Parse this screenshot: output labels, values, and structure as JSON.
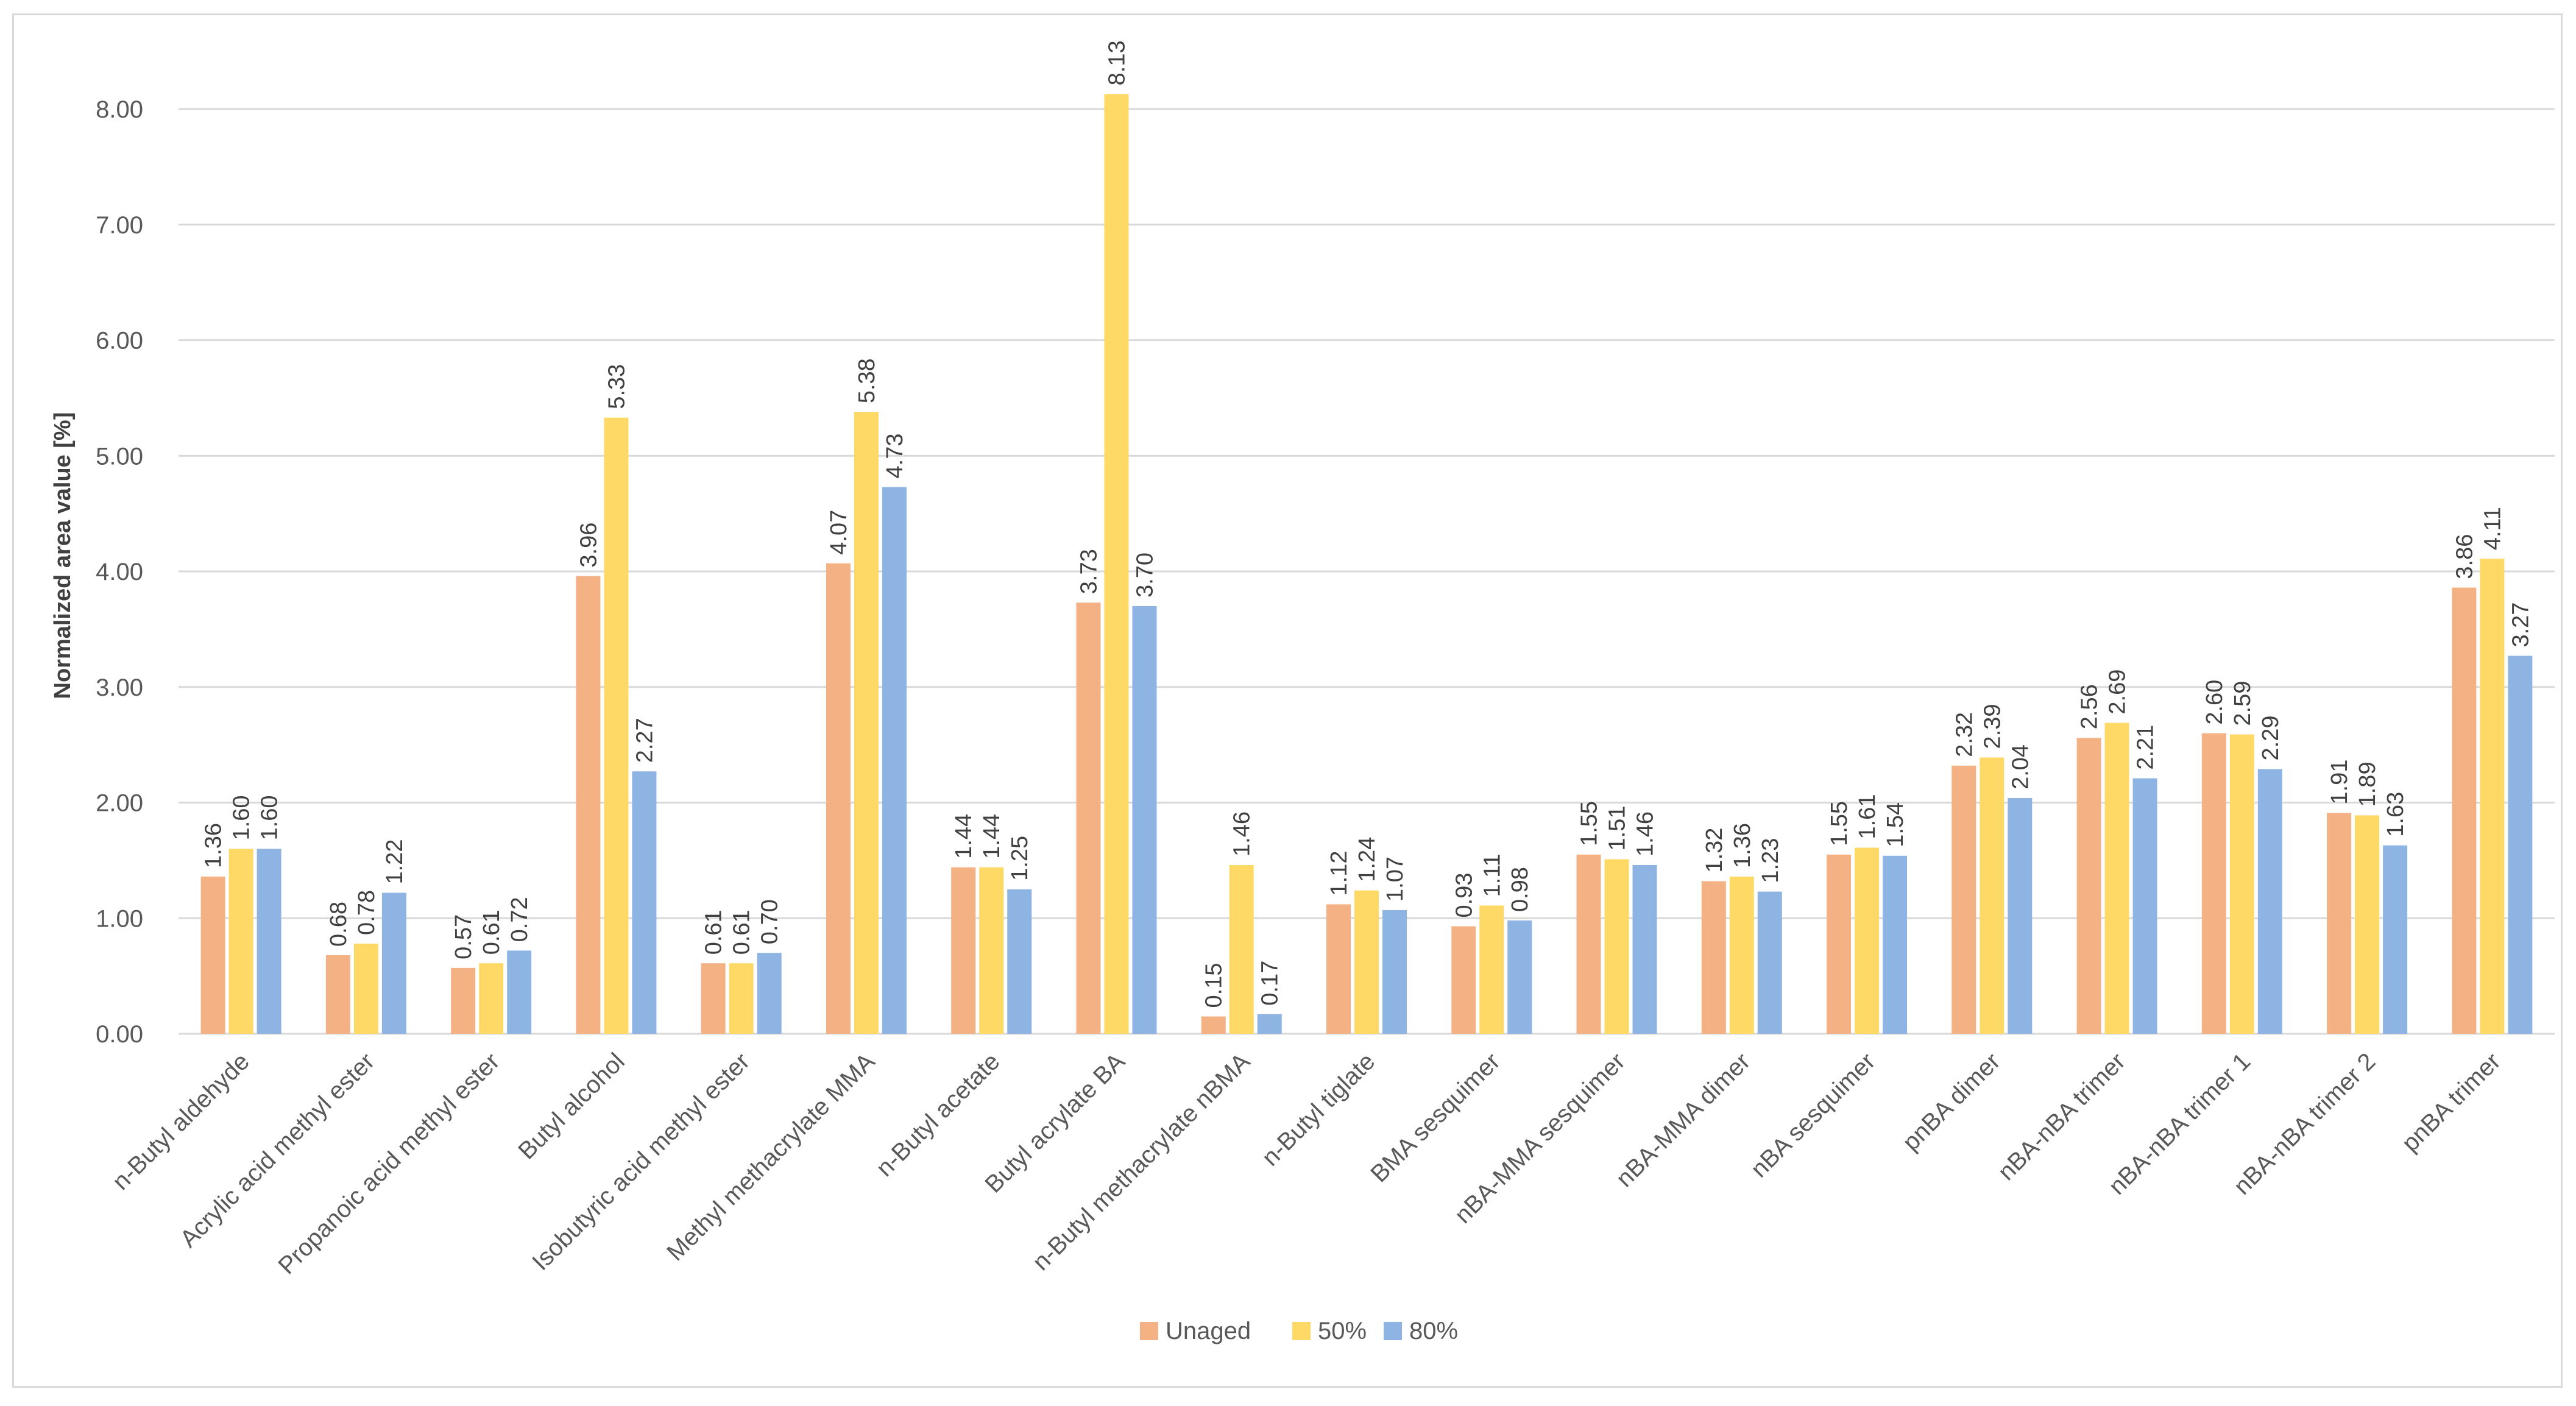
{
  "chart_data": {
    "type": "bar",
    "title": "",
    "xlabel": "",
    "ylabel": "Normalized area value [%]",
    "ylim": [
      0,
      8.5
    ],
    "yticks": [
      "0.00",
      "1.00",
      "2.00",
      "3.00",
      "4.00",
      "5.00",
      "6.00",
      "7.00",
      "8.00"
    ],
    "grid": true,
    "legend_position": "bottom",
    "categories": [
      "n-Butyl aldehyde",
      "Acrylic acid methyl ester",
      "Propanoic acid methyl ester",
      "Butyl alcohol",
      "Isobutyric acid methyl ester",
      "Methyl methacrylate MMA",
      "n-Butyl acetate",
      "Butyl acrylate BA",
      "n-Butyl methacrylate nBMA",
      "n-Butyl tiglate",
      "BMA sesquimer",
      "nBA-MMA sesquimer",
      "nBA-MMA dimer",
      "nBA sesquimer",
      "pnBA dimer",
      "nBA-nBA trimer",
      "nBA-nBA trimer 1",
      "nBA-nBA trimer 2",
      "pnBA trimer"
    ],
    "series": [
      {
        "name": "Unaged",
        "color": "#F4B183",
        "values": [
          1.36,
          0.68,
          0.57,
          3.96,
          0.61,
          4.07,
          1.44,
          3.73,
          0.15,
          1.12,
          0.93,
          1.55,
          1.32,
          1.55,
          2.32,
          2.56,
          2.6,
          1.91,
          3.86
        ]
      },
      {
        "name": "50%",
        "color": "#FFD966",
        "values": [
          1.6,
          0.78,
          0.61,
          5.33,
          0.61,
          5.38,
          1.44,
          8.13,
          1.46,
          1.24,
          1.11,
          1.51,
          1.36,
          1.61,
          2.39,
          2.69,
          2.59,
          1.89,
          4.11
        ]
      },
      {
        "name": "80%",
        "color": "#8EB4E3",
        "values": [
          1.6,
          1.22,
          0.72,
          2.27,
          0.7,
          4.73,
          1.25,
          3.7,
          0.17,
          1.07,
          0.98,
          1.46,
          1.23,
          1.54,
          2.04,
          2.21,
          2.29,
          1.63,
          3.27
        ]
      }
    ]
  }
}
